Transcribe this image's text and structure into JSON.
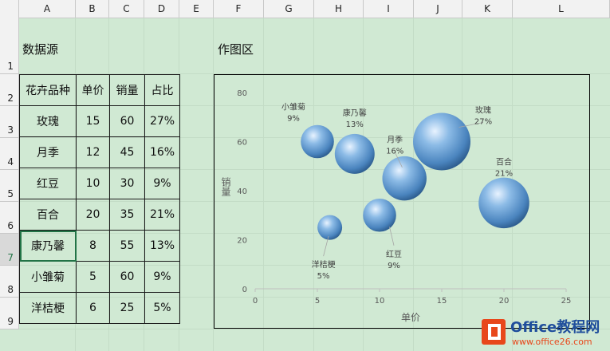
{
  "columns": [
    "A",
    "B",
    "C",
    "D",
    "E",
    "F",
    "G",
    "H",
    "I",
    "J",
    "K",
    "L"
  ],
  "rows": [
    "1",
    "2",
    "3",
    "4",
    "5",
    "6",
    "7",
    "8",
    "9"
  ],
  "titles": {
    "data_source": "数据源",
    "plot_area": "作图区"
  },
  "table": {
    "headers": [
      "花卉品种",
      "单价",
      "销量",
      "占比"
    ],
    "rows": [
      [
        "玫瑰",
        "15",
        "60",
        "27%"
      ],
      [
        "月季",
        "12",
        "45",
        "16%"
      ],
      [
        "红豆",
        "10",
        "30",
        "9%"
      ],
      [
        "百合",
        "20",
        "35",
        "21%"
      ],
      [
        "康乃馨",
        "8",
        "55",
        "13%"
      ],
      [
        "小雏菊",
        "5",
        "60",
        "9%"
      ],
      [
        "洋桔梗",
        "6",
        "25",
        "5%"
      ]
    ]
  },
  "chart_data": {
    "type": "bubble",
    "xlabel": "单价",
    "ylabel": "销量",
    "xlim": [
      0,
      25
    ],
    "ylim": [
      0,
      80
    ],
    "xticks": [
      0,
      5,
      10,
      15,
      20,
      25
    ],
    "yticks": [
      0,
      20,
      40,
      60,
      80
    ],
    "points": [
      {
        "name": "玫瑰",
        "x": 15,
        "y": 60,
        "share": "27%"
      },
      {
        "name": "月季",
        "x": 12,
        "y": 45,
        "share": "16%"
      },
      {
        "name": "红豆",
        "x": 10,
        "y": 30,
        "share": "9%"
      },
      {
        "name": "百合",
        "x": 20,
        "y": 35,
        "share": "21%"
      },
      {
        "name": "康乃馨",
        "x": 8,
        "y": 55,
        "share": "13%"
      },
      {
        "name": "小雏菊",
        "x": 5,
        "y": 60,
        "share": "9%"
      },
      {
        "name": "洋桔梗",
        "x": 6,
        "y": 25,
        "share": "5%"
      }
    ]
  },
  "watermark": {
    "brand": "Office教程网",
    "url": "www.office26.com"
  },
  "colors": {
    "bubble": "#6fa6d6",
    "background": "#d0e9d3"
  }
}
